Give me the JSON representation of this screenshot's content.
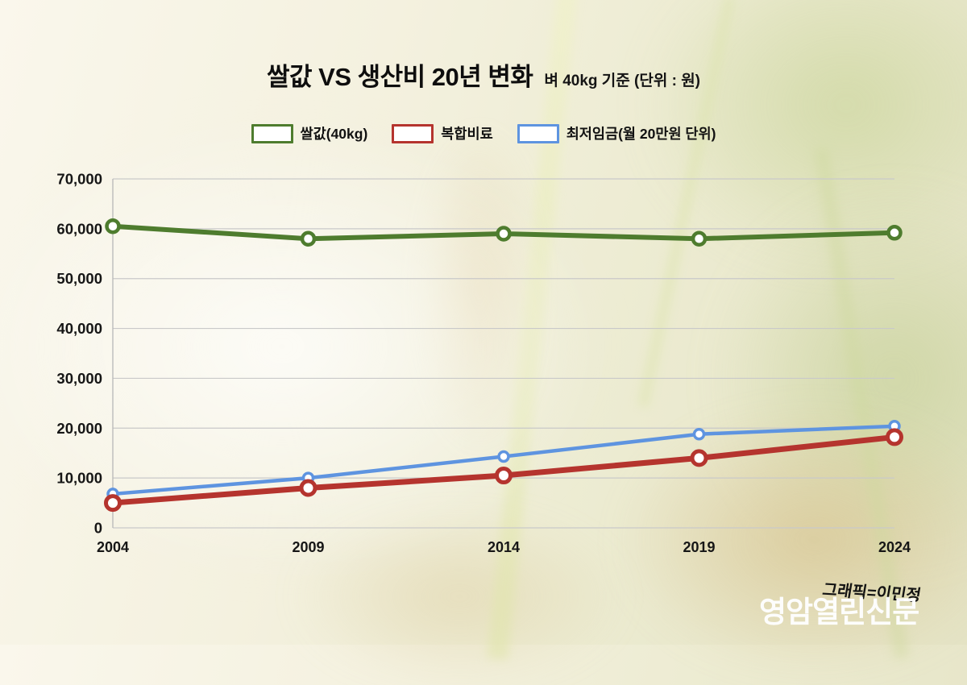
{
  "header": {
    "title": "쌀값 VS 생산비 20년 변화",
    "subtitle": "벼 40kg 기준 (단위 : 원)"
  },
  "legend": {
    "items": [
      {
        "label": "쌀값(40kg)",
        "color": "#4e7c2e"
      },
      {
        "label": "복합비료",
        "color": "#b5342e"
      },
      {
        "label": "최저임금(월 20만원 단위)",
        "color": "#5e94e0"
      }
    ]
  },
  "chart_data": {
    "type": "line",
    "title": "쌀값 VS 생산비 20년 변화",
    "subtitle": "벼 40kg 기준 (단위 : 원)",
    "unit": "원",
    "categories": [
      "2004",
      "2009",
      "2014",
      "2019",
      "2024"
    ],
    "series": [
      {
        "name": "쌀값(40kg)",
        "color": "#4e7c2e",
        "values": [
          60500,
          58000,
          59000,
          58000,
          59200
        ]
      },
      {
        "name": "복합비료",
        "color": "#b5342e",
        "values": [
          5000,
          8000,
          10500,
          14000,
          18200
        ]
      },
      {
        "name": "최저임금(월 20만원 단위)",
        "color": "#5e94e0",
        "values": [
          6800,
          10000,
          14300,
          18800,
          20400
        ]
      }
    ],
    "ylim": [
      0,
      70000
    ],
    "ytick_step": 10000,
    "ytick_labels": [
      "0",
      "10,000",
      "20,000",
      "30,000",
      "40,000",
      "50,000",
      "60,000",
      "70,000"
    ],
    "grid": true,
    "legend_position": "top",
    "marker": "open-circle"
  },
  "footer": {
    "credit": "그래픽=이민정",
    "logo": "영암열린신문"
  },
  "colors": {
    "grid": "#c9c9c9",
    "axis": "#b7b7b7",
    "text": "#161616",
    "marker_fill": "#ffffff"
  }
}
